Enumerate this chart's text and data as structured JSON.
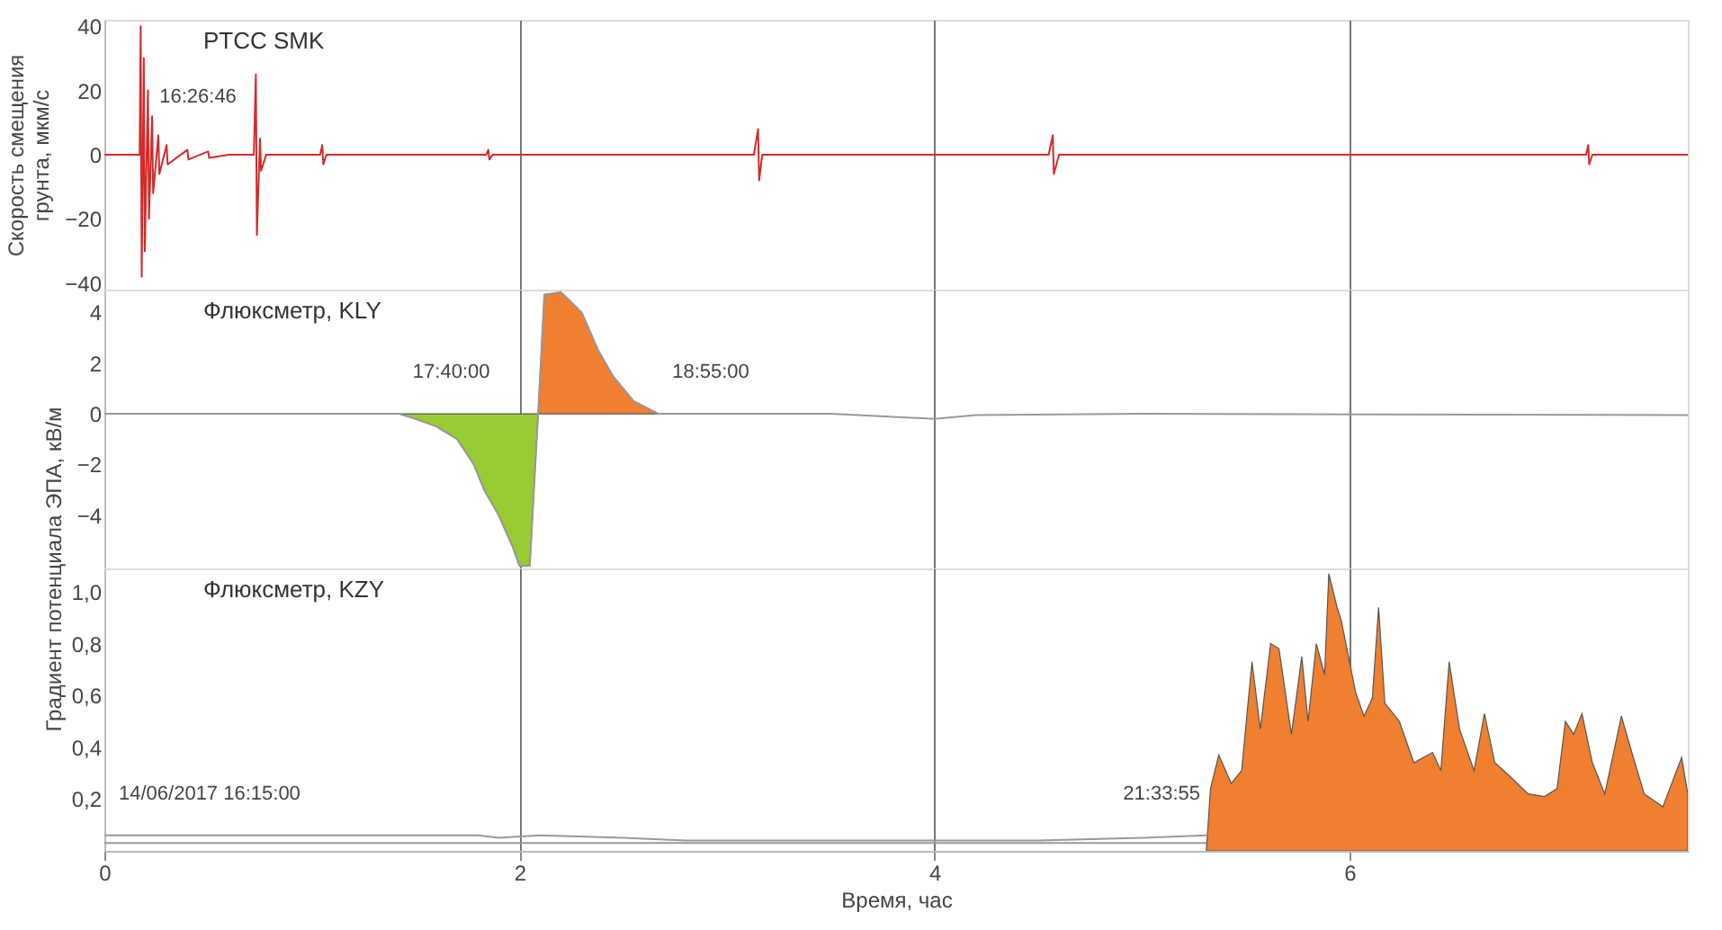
{
  "chart_data": [
    {
      "type": "line",
      "title": "PTCC SMK",
      "ylabel": "Скорость смещения\nгрунта, мкм/с",
      "xlim": [
        0,
        7.63
      ],
      "xticks": [
        0,
        2,
        4,
        6
      ],
      "ylim": [
        -42,
        42
      ],
      "yticks": [
        -40,
        -20,
        0,
        20,
        40
      ],
      "grid": "x",
      "tick_labels": "y",
      "annotations": [
        {
          "text": "16:26:46",
          "x": 0.196,
          "y": 5
        }
      ],
      "series": [
        {
          "color": "#d42a2a",
          "x": [
            0,
            0.17,
            0.175,
            0.18,
            0.19,
            0.195,
            0.21,
            0.215,
            0.23,
            0.235,
            0.26,
            0.265,
            0.3,
            0.305,
            0.4,
            0.405,
            0.5,
            0.505,
            0.6,
            0.72,
            0.73,
            0.735,
            0.75,
            0.755,
            0.78,
            1.04,
            1.05,
            1.055,
            1.07,
            1.84,
            1.85,
            1.855,
            1.87,
            3.13,
            3.15,
            3.155,
            3.17,
            4.55,
            4.57,
            4.575,
            4.6,
            7.14,
            7.15,
            7.155,
            7.17,
            7.63
          ],
          "values": [
            0,
            0,
            40,
            -38,
            30,
            -30,
            20,
            -20,
            12,
            -12,
            6,
            -6,
            3,
            -3,
            1.5,
            -1.5,
            1,
            -1,
            0,
            0,
            25,
            -25,
            5,
            -5,
            0,
            0,
            3,
            -3,
            0,
            0,
            1.5,
            -1.5,
            0,
            0,
            8,
            -8,
            0,
            0,
            6,
            -6,
            0,
            0,
            3,
            -3,
            0,
            0
          ]
        }
      ]
    },
    {
      "type": "line",
      "title": "Флюксметр, KLY",
      "ylabel": "Градиент потенциала ЭПА, кВ/м",
      "xlim": [
        0,
        7.63
      ],
      "xticks": [
        0,
        2,
        4,
        6
      ],
      "ylim": [
        -6.1,
        4.9
      ],
      "yticks": [
        -4,
        -2,
        0,
        2,
        4
      ],
      "grid": "x",
      "tick_labels": "y",
      "annotations": [
        {
          "text": "17:40:00",
          "x": 1.417,
          "y": 0
        },
        {
          "text": "18:55:00",
          "x": 2.667,
          "y": 0
        }
      ],
      "series": [
        {
          "type": "area",
          "color": "#99cc33",
          "x": [
            1.42,
            1.5,
            1.6,
            1.7,
            1.78,
            1.83,
            1.9,
            1.97,
            2.0,
            2.05,
            2.09
          ],
          "values": [
            0,
            -0.2,
            -0.5,
            -1.0,
            -2.0,
            -3.0,
            -4.0,
            -5.3,
            -6.0,
            -6.0,
            0
          ]
        },
        {
          "type": "area",
          "color": "#f07f30",
          "x": [
            2.09,
            2.12,
            2.2,
            2.3,
            2.38,
            2.45,
            2.55,
            2.67
          ],
          "values": [
            0,
            4.7,
            4.8,
            4.0,
            2.5,
            1.5,
            0.5,
            0
          ]
        },
        {
          "type": "line",
          "color": "#999999",
          "x": [
            0,
            1.42,
            1.5,
            1.6,
            1.7,
            1.78,
            1.83,
            1.9,
            1.97,
            2.0,
            2.05,
            2.09,
            2.12,
            2.2,
            2.3,
            2.38,
            2.45,
            2.55,
            2.67,
            3.5,
            4.0,
            4.2,
            5.0,
            7.63
          ],
          "values": [
            0,
            0,
            -0.2,
            -0.5,
            -1.0,
            -2.0,
            -3.0,
            -4.0,
            -5.3,
            -6.0,
            -6.0,
            0,
            4.7,
            4.8,
            4.0,
            2.5,
            1.5,
            0.5,
            0,
            0,
            -0.2,
            -0.05,
            0,
            -0.05
          ]
        }
      ]
    },
    {
      "type": "line",
      "title": "Флюксметр, KZY",
      "xlabel": "Время, час",
      "xlim": [
        0,
        7.63
      ],
      "xticks": [
        0,
        2,
        4,
        6
      ],
      "ylim": [
        0,
        1.09
      ],
      "yticks": [
        {
          "value": 0.2,
          "label": "0,2"
        },
        {
          "value": 0.4,
          "label": "0,4"
        },
        {
          "value": 0.6,
          "label": "0,6"
        },
        {
          "value": 0.8,
          "label": "0,8"
        },
        {
          "value": 1.0,
          "label": "1,0"
        }
      ],
      "grid": "x",
      "annotations": [
        {
          "text": "14/06/2017 16:15:00",
          "x": 0,
          "y": 0.06
        },
        {
          "text": "21:33:55",
          "x": 5.315,
          "y": 0.06
        }
      ],
      "series": [
        {
          "type": "line",
          "color": "#999999",
          "x": [
            0,
            1.8,
            1.9,
            2.1,
            2.5,
            2.8,
            3.5,
            4.5,
            5.0,
            5.31
          ],
          "values": [
            0.06,
            0.06,
            0.05,
            0.06,
            0.05,
            0.04,
            0.04,
            0.04,
            0.05,
            0.06
          ]
        },
        {
          "type": "line",
          "color": "#999999",
          "x": [
            0,
            2.0,
            4.0,
            5.31
          ],
          "values": [
            0.03,
            0.03,
            0.03,
            0.03
          ]
        },
        {
          "type": "area",
          "color": "#f07f30",
          "x": [
            5.31,
            5.33,
            5.37,
            5.43,
            5.48,
            5.53,
            5.57,
            5.62,
            5.66,
            5.72,
            5.77,
            5.8,
            5.84,
            5.88,
            5.9,
            5.94,
            5.96,
            6.03,
            6.07,
            6.11,
            6.14,
            6.17,
            6.24,
            6.31,
            6.4,
            6.44,
            6.48,
            6.53,
            6.6,
            6.65,
            6.7,
            6.77,
            6.86,
            6.94,
            7.0,
            7.04,
            7.08,
            7.12,
            7.17,
            7.23,
            7.31,
            7.36,
            7.42,
            7.51,
            7.6,
            7.63
          ],
          "values": [
            0,
            0.24,
            0.37,
            0.26,
            0.31,
            0.73,
            0.47,
            0.8,
            0.78,
            0.45,
            0.75,
            0.5,
            0.8,
            0.68,
            1.07,
            0.94,
            0.89,
            0.61,
            0.52,
            0.59,
            0.94,
            0.57,
            0.5,
            0.34,
            0.38,
            0.31,
            0.73,
            0.47,
            0.31,
            0.53,
            0.34,
            0.29,
            0.22,
            0.21,
            0.24,
            0.5,
            0.45,
            0.53,
            0.34,
            0.22,
            0.52,
            0.38,
            0.22,
            0.17,
            0.36,
            0.22
          ]
        }
      ]
    }
  ]
}
